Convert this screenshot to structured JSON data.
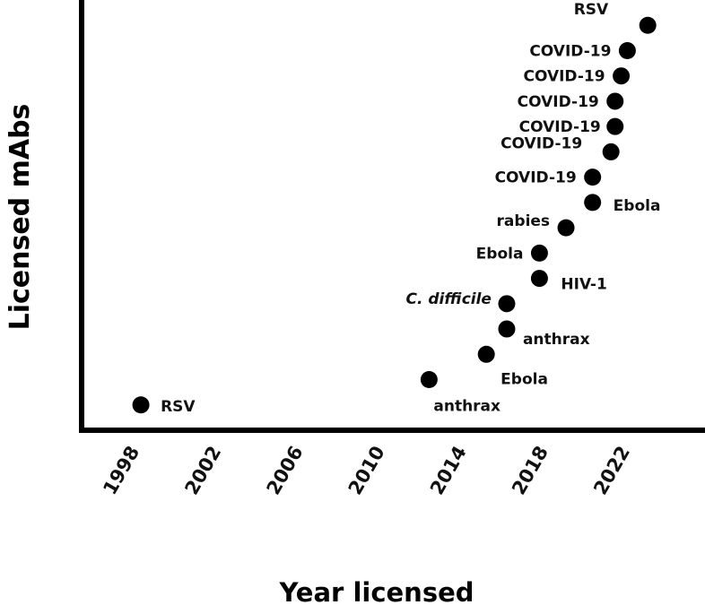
{
  "chart_data": {
    "type": "scatter",
    "title": "",
    "xlabel": "Year licensed",
    "ylabel": "Licensed mAbs",
    "xlim": [
      1995.5,
      2026.0
    ],
    "ylim": [
      0,
      17
    ],
    "x_ticks": [
      "1998",
      "2002",
      "2006",
      "2010",
      "2014",
      "2018",
      "2022"
    ],
    "y_ticks": [],
    "grid": false,
    "legend": "none",
    "marker_color": "#000000",
    "points": [
      {
        "x": 1998.4,
        "y": 1,
        "label": "RSV",
        "italic": false
      },
      {
        "x": 2012.5,
        "y": 2,
        "label": "anthrax",
        "italic": false
      },
      {
        "x": 2015.3,
        "y": 3,
        "label": "Ebola",
        "italic": false
      },
      {
        "x": 2016.3,
        "y": 4,
        "label": "anthrax",
        "italic": false
      },
      {
        "x": 2016.3,
        "y": 5,
        "label": "C. difficile",
        "italic": true
      },
      {
        "x": 2017.9,
        "y": 6,
        "label": "HIV-1",
        "italic": false
      },
      {
        "x": 2017.9,
        "y": 7,
        "label": "Ebola",
        "italic": false
      },
      {
        "x": 2019.2,
        "y": 8,
        "label": "rabies",
        "italic": false
      },
      {
        "x": 2020.5,
        "y": 9,
        "label": "Ebola",
        "italic": false
      },
      {
        "x": 2020.5,
        "y": 10,
        "label": "COVID-19",
        "italic": false
      },
      {
        "x": 2021.4,
        "y": 11,
        "label": "COVID-19",
        "italic": false
      },
      {
        "x": 2021.6,
        "y": 12,
        "label": "COVID-19",
        "italic": false
      },
      {
        "x": 2021.6,
        "y": 13,
        "label": "COVID-19",
        "italic": false
      },
      {
        "x": 2021.9,
        "y": 14,
        "label": "COVID-19",
        "italic": false
      },
      {
        "x": 2022.2,
        "y": 15,
        "label": "COVID-19",
        "italic": false
      },
      {
        "x": 2023.2,
        "y": 16,
        "label": "RSV",
        "italic": false
      }
    ]
  }
}
